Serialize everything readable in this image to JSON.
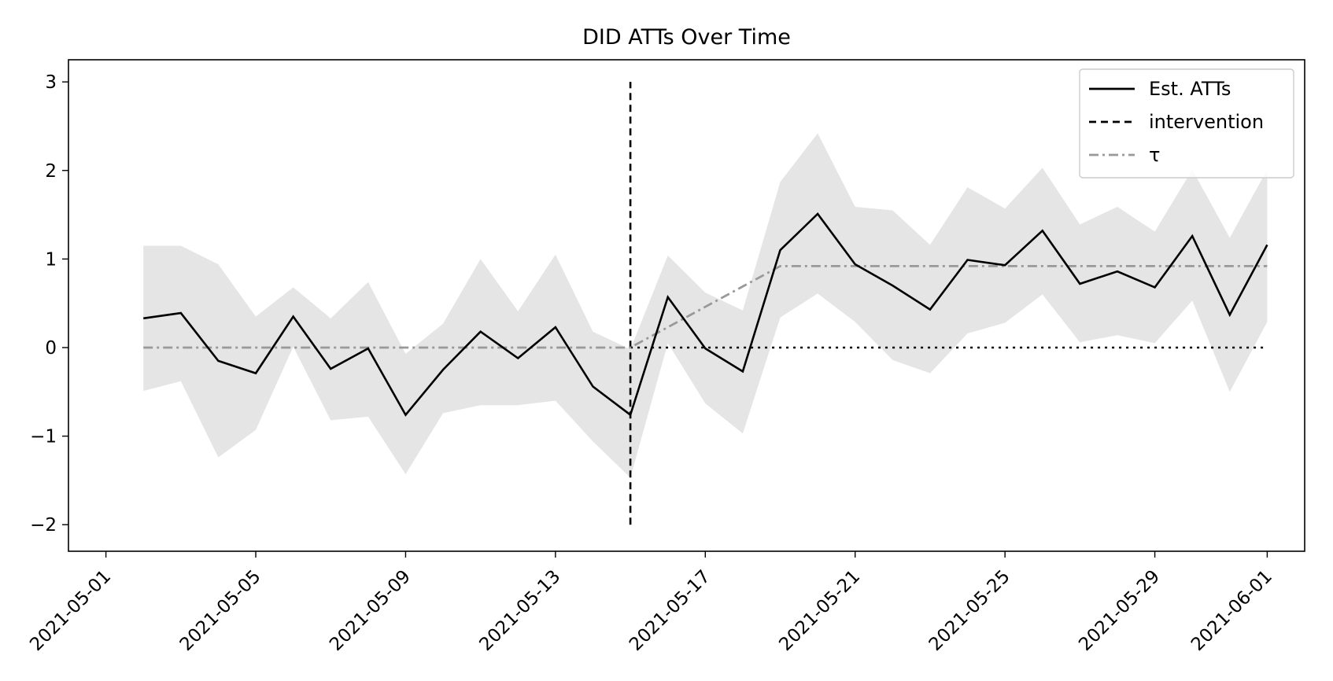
{
  "chart_data": {
    "type": "line",
    "title": "DID ATTs Over Time",
    "xlabel": "",
    "ylabel": "",
    "xlim": [
      "2021-04-30",
      "2021-06-02"
    ],
    "ylim": [
      -2.3,
      3.25
    ],
    "x_ticks": [
      "2021-05-01",
      "2021-05-05",
      "2021-05-09",
      "2021-05-13",
      "2021-05-17",
      "2021-05-21",
      "2021-05-25",
      "2021-05-29",
      "2021-06-01"
    ],
    "y_ticks": [
      -2,
      -1,
      0,
      1,
      2,
      3
    ],
    "y_tick_labels": [
      "−2",
      "−1",
      "0",
      "1",
      "2",
      "3"
    ],
    "grid": false,
    "legend_position": "top-right",
    "x": [
      "2021-05-02",
      "2021-05-03",
      "2021-05-04",
      "2021-05-05",
      "2021-05-06",
      "2021-05-07",
      "2021-05-08",
      "2021-05-09",
      "2021-05-10",
      "2021-05-11",
      "2021-05-12",
      "2021-05-13",
      "2021-05-14",
      "2021-05-15",
      "2021-05-16",
      "2021-05-17",
      "2021-05-18",
      "2021-05-19",
      "2021-05-20",
      "2021-05-21",
      "2021-05-22",
      "2021-05-23",
      "2021-05-24",
      "2021-05-25",
      "2021-05-26",
      "2021-05-27",
      "2021-05-28",
      "2021-05-29",
      "2021-05-30",
      "2021-05-31",
      "2021-06-01"
    ],
    "series": [
      {
        "name": "Est. ATTs",
        "style": "solid",
        "color": "#000000",
        "values": [
          0.33,
          0.39,
          -0.15,
          -0.29,
          0.35,
          -0.24,
          -0.01,
          -0.76,
          -0.25,
          0.18,
          -0.12,
          0.23,
          -0.44,
          -0.76,
          0.57,
          -0.01,
          -0.27,
          1.1,
          1.51,
          0.94,
          0.7,
          0.43,
          0.99,
          0.93,
          1.32,
          0.72,
          0.86,
          0.68,
          1.26,
          0.37,
          1.16
        ]
      },
      {
        "name": "τ",
        "style": "dashdot",
        "color": "#999999",
        "values": [
          0,
          0,
          0,
          0,
          0,
          0,
          0,
          0,
          0,
          0,
          0,
          0,
          0,
          0,
          0.23,
          0.46,
          0.69,
          0.92,
          0.92,
          0.92,
          0.92,
          0.92,
          0.92,
          0.92,
          0.92,
          0.92,
          0.92,
          0.92,
          0.92,
          0.92,
          0.92
        ]
      }
    ],
    "confidence_band": {
      "color": "#e5e5e5",
      "upper": [
        1.15,
        1.15,
        0.94,
        0.35,
        0.68,
        0.33,
        0.74,
        -0.07,
        0.27,
        1.0,
        0.41,
        1.05,
        0.18,
        -0.02,
        1.04,
        0.62,
        0.42,
        1.87,
        2.42,
        1.59,
        1.55,
        1.16,
        1.81,
        1.57,
        2.03,
        1.39,
        1.59,
        1.31,
        2.01,
        1.24,
        2.01
      ],
      "lower": [
        -0.49,
        -0.38,
        -1.24,
        -0.93,
        0.01,
        -0.82,
        -0.78,
        -1.43,
        -0.74,
        -0.65,
        -0.65,
        -0.6,
        -1.06,
        -1.47,
        0.05,
        -0.63,
        -0.97,
        0.34,
        0.61,
        0.29,
        -0.14,
        -0.29,
        0.16,
        0.28,
        0.6,
        0.06,
        0.14,
        0.05,
        0.53,
        -0.5,
        0.29
      ]
    },
    "reference_lines": [
      {
        "name": "intervention",
        "type": "vertical",
        "x": "2021-05-15",
        "y_from": -2,
        "y_to": 3,
        "style": "dashed",
        "color": "#000000"
      },
      {
        "name": "",
        "type": "horizontal",
        "y": 0,
        "x_from": "2021-05-15",
        "x_to": "2021-06-01",
        "style": "dotted",
        "color": "#000000"
      }
    ],
    "legend": [
      {
        "label": "Est. ATTs",
        "style": "solid",
        "color": "#000000"
      },
      {
        "label": "intervention",
        "style": "dashed",
        "color": "#000000"
      },
      {
        "label": "τ",
        "style": "dashdot",
        "color": "#999999"
      }
    ]
  }
}
